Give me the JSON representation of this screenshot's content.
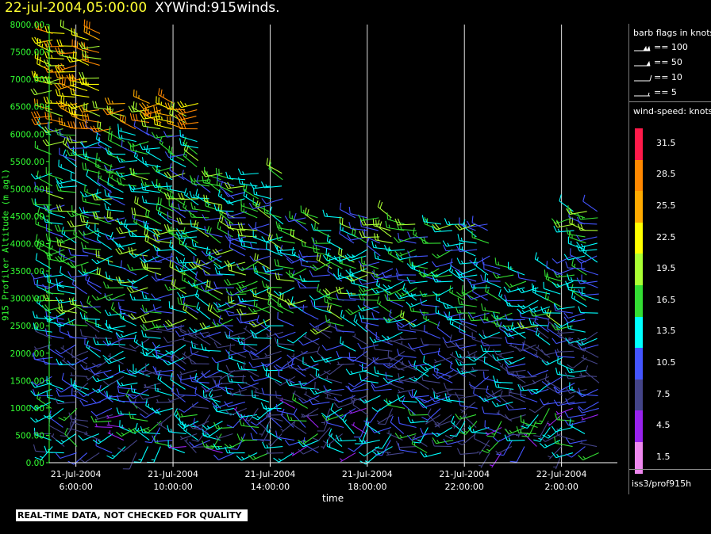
{
  "header": {
    "timestamp": "22-jul-2004,05:00:00",
    "name": "XYWind:915winds."
  },
  "chart_data": {
    "type": "scatter",
    "subtype": "wind-barbs",
    "ylabel": "915 Profiler Altitude (m agl)",
    "xlabel": "time",
    "ylim": [
      0,
      8000
    ],
    "y_ticks": [
      "0.00",
      "500.00",
      "1000.00",
      "1500.00",
      "2000.00",
      "2500.00",
      "3000.00",
      "3500.00",
      "4000.00",
      "4500.00",
      "5000.00",
      "5500.00",
      "6000.00",
      "6500.00",
      "7000.00",
      "7500.00",
      "8000.00"
    ],
    "x_hours": [
      6,
      10,
      14,
      18,
      22,
      26
    ],
    "x_ticks": [
      {
        "date": "21-Jul-2004",
        "time": "6:00:00"
      },
      {
        "date": "21-Jul-2004",
        "time": "10:00:00"
      },
      {
        "date": "21-Jul-2004",
        "time": "14:00:00"
      },
      {
        "date": "21-Jul-2004",
        "time": "18:00:00"
      },
      {
        "date": "21-Jul-2004",
        "time": "22:00:00"
      },
      {
        "date": "22-Jul-2004",
        "time": "2:00:00"
      }
    ],
    "xlim_hours": [
      4.9,
      28.3
    ],
    "grid": "vertical lines at x ticks",
    "axis_color": "#33ff33",
    "barb_flags_title": "barb flags in knots",
    "barb_flags": [
      {
        "label": "== 100",
        "kind": "pennant100"
      },
      {
        "label": "== 50",
        "kind": "pennant"
      },
      {
        "label": "== 10",
        "kind": "full"
      },
      {
        "label": "== 5",
        "kind": "half"
      }
    ],
    "colorbar_title": "wind-speed: knots",
    "colorbar": [
      {
        "label": "31.5",
        "color": "#ff1a4a"
      },
      {
        "label": "28.5",
        "color": "#ff8800"
      },
      {
        "label": "25.5",
        "color": "#ffaa00"
      },
      {
        "label": "22.5",
        "color": "#ffff00"
      },
      {
        "label": "19.5",
        "color": "#aaff33"
      },
      {
        "label": "16.5",
        "color": "#33dd33"
      },
      {
        "label": "13.5",
        "color": "#00ffff"
      },
      {
        "label": "10.5",
        "color": "#4455ff"
      },
      {
        "label": "7.5",
        "color": "#444488"
      },
      {
        "label": "4.5",
        "color": "#9922ee"
      },
      {
        "label": "1.5",
        "color": "#ee88ee"
      }
    ]
  },
  "source": "iss3/prof915h",
  "warning": "REAL-TIME DATA, NOT CHECKED FOR QUALITY"
}
